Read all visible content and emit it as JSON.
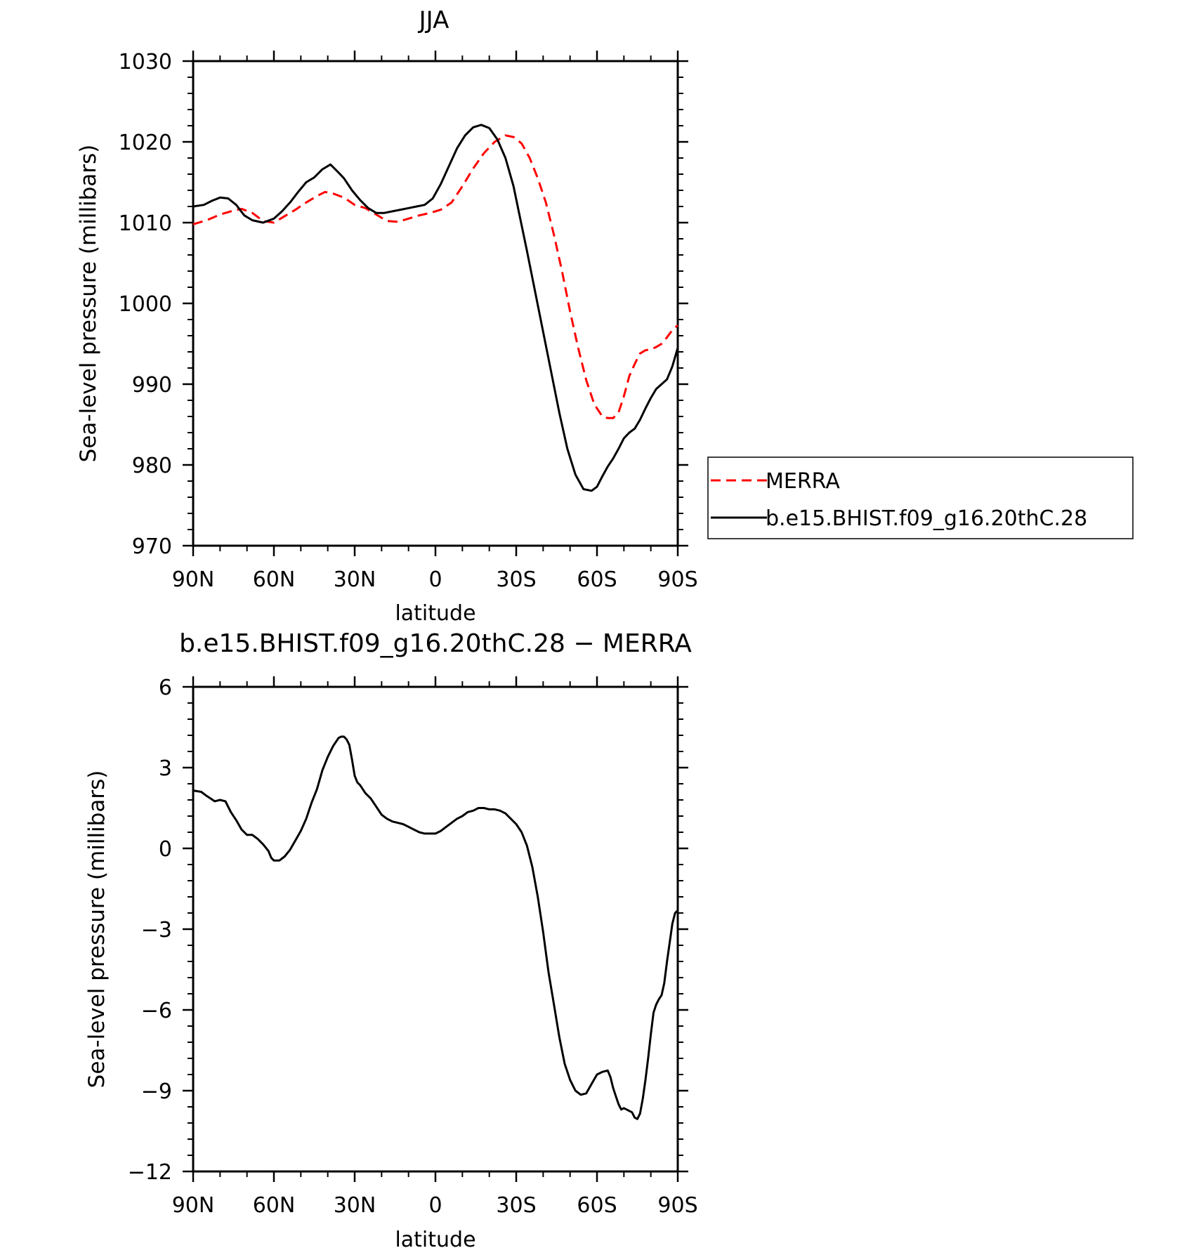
{
  "chart_data": [
    {
      "type": "line",
      "title": "JJA",
      "xlabel": "latitude",
      "ylabel": "Sea-level pressure (millibars)",
      "x_units": "degrees latitude (positive = N)",
      "xlim": [
        90,
        -90
      ],
      "xticks": [
        90,
        60,
        30,
        0,
        -30,
        -60,
        -90
      ],
      "xtick_labels": [
        "90N",
        "60N",
        "30N",
        "0",
        "30S",
        "60S",
        "90S"
      ],
      "ylim": [
        970,
        1030
      ],
      "yticks": [
        970,
        980,
        990,
        1000,
        1010,
        1020,
        1030
      ],
      "ytick_labels": [
        "970",
        "980",
        "990",
        "1000",
        "1010",
        "1020",
        "1030"
      ],
      "grid": false,
      "legend_position": "right, outside plot",
      "series": [
        {
          "name": "MERRA",
          "color": "#ff0000",
          "dash": "dashed",
          "x": [
            90,
            85,
            80,
            76,
            72,
            68,
            64,
            60,
            56,
            52,
            48,
            44,
            41,
            38,
            34,
            30,
            26,
            22,
            18,
            14,
            10,
            6,
            2,
            -2,
            -6,
            -10,
            -14,
            -18,
            -22,
            -26,
            -29,
            -32,
            -35,
            -38,
            -41,
            -44,
            -47,
            -50,
            -53,
            -56,
            -59,
            -62,
            -64,
            -66,
            -68,
            -70,
            -72,
            -74,
            -76,
            -78,
            -80,
            -82,
            -84,
            -86,
            -88,
            -90
          ],
          "y": [
            1009.8,
            1010.3,
            1011.0,
            1011.4,
            1011.7,
            1011.2,
            1010.2,
            1010.0,
            1010.8,
            1011.6,
            1012.5,
            1013.3,
            1013.8,
            1013.6,
            1013.1,
            1012.2,
            1011.8,
            1011.0,
            1010.2,
            1010.1,
            1010.5,
            1010.9,
            1011.2,
            1011.6,
            1012.5,
            1014.5,
            1016.7,
            1018.6,
            1020.0,
            1020.8,
            1020.6,
            1019.8,
            1018.0,
            1015.5,
            1012.5,
            1008.5,
            1004.0,
            999.0,
            994.5,
            990.5,
            987.5,
            986.0,
            985.8,
            985.8,
            986.5,
            988.5,
            991.0,
            992.5,
            993.8,
            994.2,
            994.3,
            994.6,
            995.0,
            995.8,
            996.7,
            997.3
          ]
        },
        {
          "name": "b.e15.BHIST.f09_g16.20thC.28",
          "color": "#000000",
          "dash": "solid",
          "x": [
            90,
            86,
            83,
            80,
            77,
            74,
            71,
            68,
            64,
            60,
            57,
            54,
            51,
            48,
            45,
            42,
            39,
            36,
            34,
            31,
            28,
            25,
            22,
            19,
            16,
            13,
            10,
            7,
            4,
            1,
            -2,
            -5,
            -8,
            -11,
            -14,
            -17,
            -20,
            -23,
            -26,
            -29,
            -31,
            -34,
            -37,
            -40,
            -43,
            -46,
            -49,
            -52,
            -55,
            -58,
            -60,
            -62,
            -64,
            -66,
            -68,
            -70,
            -72,
            -74,
            -76,
            -78,
            -80,
            -82,
            -84,
            -86,
            -88,
            -90
          ],
          "y": [
            1012.0,
            1012.2,
            1012.7,
            1013.1,
            1013.0,
            1012.2,
            1010.9,
            1010.3,
            1010.0,
            1010.5,
            1011.4,
            1012.5,
            1013.8,
            1015.0,
            1015.6,
            1016.6,
            1017.2,
            1016.2,
            1015.5,
            1014.0,
            1012.8,
            1011.8,
            1011.2,
            1011.2,
            1011.4,
            1011.6,
            1011.8,
            1012.0,
            1012.2,
            1013.0,
            1014.8,
            1017.0,
            1019.2,
            1020.8,
            1021.8,
            1022.1,
            1021.7,
            1020.3,
            1018.0,
            1014.5,
            1011.3,
            1006.5,
            1001.5,
            996.5,
            991.5,
            986.5,
            982.0,
            978.8,
            977.0,
            976.8,
            977.3,
            978.6,
            979.8,
            980.8,
            982.0,
            983.3,
            984.0,
            984.5,
            985.6,
            987.0,
            988.3,
            989.4,
            990.0,
            990.6,
            992.2,
            994.5
          ]
        }
      ]
    },
    {
      "type": "line",
      "title": "b.e15.BHIST.f09_g16.20thC.28 − MERRA",
      "xlabel": "latitude",
      "ylabel": "Sea-level pressure (millibars)",
      "x_units": "degrees latitude (positive = N)",
      "xlim": [
        90,
        -90
      ],
      "xticks": [
        90,
        60,
        30,
        0,
        -30,
        -60,
        -90
      ],
      "xtick_labels": [
        "90N",
        "60N",
        "30N",
        "0",
        "30S",
        "60S",
        "90S"
      ],
      "ylim": [
        -12,
        6
      ],
      "yticks": [
        -12,
        -9,
        -6,
        -3,
        0,
        3,
        6
      ],
      "ytick_labels": [
        "−12",
        "−9",
        "−6",
        "−3",
        "0",
        "3",
        "6"
      ],
      "grid": false,
      "series": [
        {
          "color": "#000000",
          "dash": "solid",
          "x": [
            90,
            87,
            85,
            82,
            80,
            78,
            76,
            74,
            72,
            70,
            68,
            66,
            64,
            62,
            61,
            60,
            58,
            56,
            54,
            52,
            50,
            48,
            46,
            44,
            42,
            40,
            38,
            36,
            35,
            34,
            33,
            32,
            31,
            30,
            29,
            28,
            27,
            26,
            24,
            22,
            20,
            18,
            16,
            14,
            12,
            10,
            8,
            6,
            4,
            2,
            0,
            -2,
            -4,
            -6,
            -8,
            -10,
            -12,
            -14,
            -16,
            -18,
            -20,
            -22,
            -24,
            -26,
            -28,
            -30,
            -32,
            -34,
            -36,
            -38,
            -40,
            -42,
            -44,
            -46,
            -48,
            -50,
            -52,
            -54,
            -56,
            -58,
            -60,
            -62,
            -64,
            -65,
            -66,
            -67,
            -68,
            -69,
            -70,
            -71,
            -72,
            -73,
            -74,
            -75,
            -76,
            -77,
            -78,
            -79,
            -80,
            -81,
            -82,
            -83,
            -84,
            -85,
            -86,
            -87,
            -88,
            -89,
            -90
          ],
          "y": [
            2.15,
            2.1,
            1.95,
            1.75,
            1.8,
            1.75,
            1.35,
            1.05,
            0.7,
            0.5,
            0.5,
            0.35,
            0.15,
            -0.1,
            -0.35,
            -0.45,
            -0.45,
            -0.3,
            -0.05,
            0.3,
            0.65,
            1.1,
            1.7,
            2.2,
            2.9,
            3.4,
            3.8,
            4.1,
            4.15,
            4.15,
            4.05,
            3.85,
            3.3,
            2.7,
            2.45,
            2.35,
            2.2,
            2.05,
            1.85,
            1.55,
            1.25,
            1.1,
            1.0,
            0.95,
            0.9,
            0.8,
            0.7,
            0.6,
            0.55,
            0.55,
            0.55,
            0.65,
            0.8,
            0.95,
            1.1,
            1.2,
            1.35,
            1.4,
            1.5,
            1.5,
            1.45,
            1.45,
            1.4,
            1.3,
            1.1,
            0.9,
            0.6,
            0.1,
            -0.7,
            -1.8,
            -3.1,
            -4.6,
            -5.8,
            -7.0,
            -8.0,
            -8.6,
            -9.0,
            -9.15,
            -9.1,
            -8.75,
            -8.4,
            -8.3,
            -8.25,
            -8.5,
            -8.9,
            -9.2,
            -9.5,
            -9.7,
            -9.65,
            -9.7,
            -9.75,
            -9.8,
            -10.0,
            -10.05,
            -9.85,
            -9.3,
            -8.6,
            -7.8,
            -6.9,
            -6.1,
            -5.8,
            -5.6,
            -5.45,
            -5.0,
            -4.2,
            -3.5,
            -2.8,
            -2.4,
            -2.3
          ]
        }
      ]
    }
  ]
}
